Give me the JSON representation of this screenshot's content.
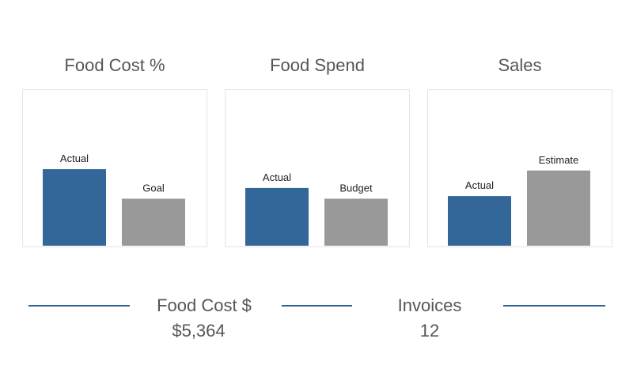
{
  "chart_data": [
    {
      "type": "bar",
      "title": "Food Cost %",
      "categories": [
        "Actual",
        "Goal"
      ],
      "values": [
        0.57,
        0.35
      ],
      "colors": [
        "#336699",
        "#999999"
      ],
      "ylim": [
        0,
        1
      ]
    },
    {
      "type": "bar",
      "title": "Food Spend",
      "categories": [
        "Actual",
        "Budget"
      ],
      "values": [
        0.43,
        0.35
      ],
      "colors": [
        "#336699",
        "#999999"
      ],
      "ylim": [
        0,
        1
      ]
    },
    {
      "type": "bar",
      "title": "Sales",
      "categories": [
        "Actual",
        "Estimate"
      ],
      "values": [
        0.37,
        0.56
      ],
      "colors": [
        "#336699",
        "#999999"
      ],
      "ylim": [
        0,
        1
      ]
    }
  ],
  "kpis": {
    "food_cost": {
      "label": "Food Cost $",
      "value": "$5,364"
    },
    "invoices": {
      "label": "Invoices",
      "value": "12"
    }
  },
  "divider_color": "#2f6196"
}
